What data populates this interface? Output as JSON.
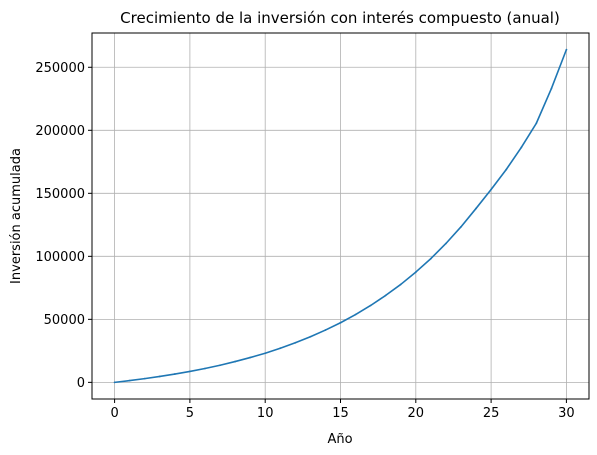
{
  "chart_data": {
    "type": "line",
    "title": "Crecimiento de la inversión con interés compuesto (anual)",
    "xlabel": "Año",
    "ylabel": "Inversión acumulada",
    "xlim": [
      -1.5,
      31.5
    ],
    "ylim": [
      -13200,
      277200
    ],
    "xticks": [
      0,
      5,
      10,
      15,
      20,
      25,
      30
    ],
    "yticks": [
      0,
      50000,
      100000,
      150000,
      200000,
      250000
    ],
    "grid": true,
    "series": [
      {
        "color": "#1f77b4",
        "x": [
          0,
          1,
          2,
          3,
          4,
          5,
          6,
          7,
          8,
          9,
          10,
          11,
          12,
          13,
          14,
          15,
          16,
          17,
          18,
          19,
          20,
          21,
          22,
          23,
          24,
          25,
          26,
          27,
          28,
          29,
          30
        ],
        "y": [
          0,
          1400,
          2960,
          4700,
          6600,
          8700,
          11000,
          13600,
          16500,
          19700,
          23100,
          27100,
          31400,
          36200,
          41500,
          47300,
          53800,
          61000,
          69000,
          77700,
          87500,
          98200,
          110200,
          123400,
          138000,
          153000,
          168800,
          186300,
          205500,
          233000,
          264000
        ]
      }
    ]
  }
}
